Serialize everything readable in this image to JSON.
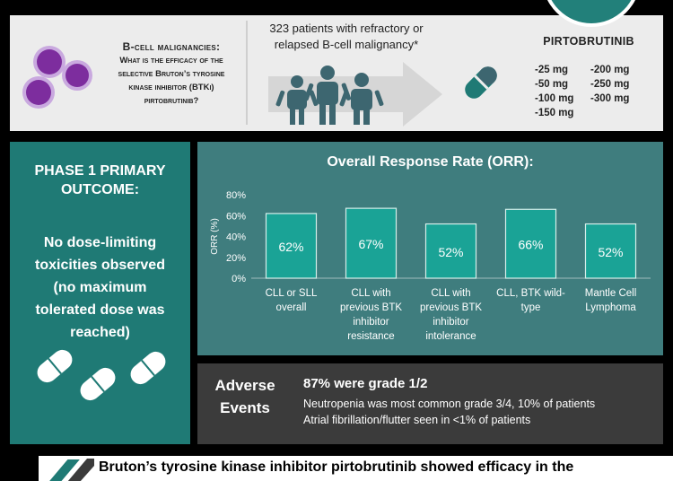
{
  "question": {
    "title": "B-cell malignancies:",
    "lines": [
      "What is the efficacy of the",
      "selective Bruton’s tyrosine",
      "kinase inhibitor (BTKi)",
      "pirtobrutinib?"
    ]
  },
  "patients": {
    "lines": [
      "323 patients with refractory or",
      "relapsed B-cell malignancy*"
    ]
  },
  "drug": {
    "name": "PIRTOBRUTINIB",
    "doses": [
      "-25 mg",
      "-200 mg",
      "-50 mg",
      "-250 mg",
      "-100 mg",
      "-300 mg",
      "-150 mg"
    ]
  },
  "phase": {
    "title_lines": [
      "PHASE 1 PRIMARY",
      "OUTCOME:"
    ],
    "body_lines": [
      "No dose-limiting",
      "toxicities observed",
      "(no maximum",
      "tolerated dose was",
      "reached)"
    ]
  },
  "chart_data": {
    "type": "bar",
    "title": "Overall Response Rate (ORR):",
    "ylabel": "ORR (%)",
    "ylim": [
      0,
      80
    ],
    "yticks": [
      "0%",
      "20%",
      "40%",
      "60%",
      "80%"
    ],
    "categories": [
      [
        "CLL or SLL",
        "overall"
      ],
      [
        "CLL with",
        "previous BTK",
        "inhibitor",
        "resistance"
      ],
      [
        "CLL with",
        "previous BTK",
        "inhibitor",
        "intolerance"
      ],
      [
        "CLL, BTK wild-",
        "type"
      ],
      [
        "Mantle Cell",
        "Lymphoma"
      ]
    ],
    "values": [
      62,
      67,
      52,
      66,
      52
    ],
    "data_labels": [
      "62%",
      "67%",
      "52%",
      "66%",
      "52%"
    ],
    "grid": false
  },
  "adverse": {
    "title_lines": [
      "Adverse",
      "Events"
    ],
    "main": "87% were grade 1/2",
    "details": [
      "Neutropenia was most common grade 3/4, 10% of patients",
      "Atrial fibrillation/flutter seen in <1% of patients"
    ]
  },
  "conclusion": {
    "text": "Bruton’s tyrosine kinase inhibitor pirtobrutinib showed efficacy in the"
  },
  "colors": {
    "teal": "#1f7a75",
    "chart_panel": "#3f7d7e",
    "bar": "#1aa396",
    "purple": "#7d2d9e",
    "figure": "#3d6670"
  }
}
